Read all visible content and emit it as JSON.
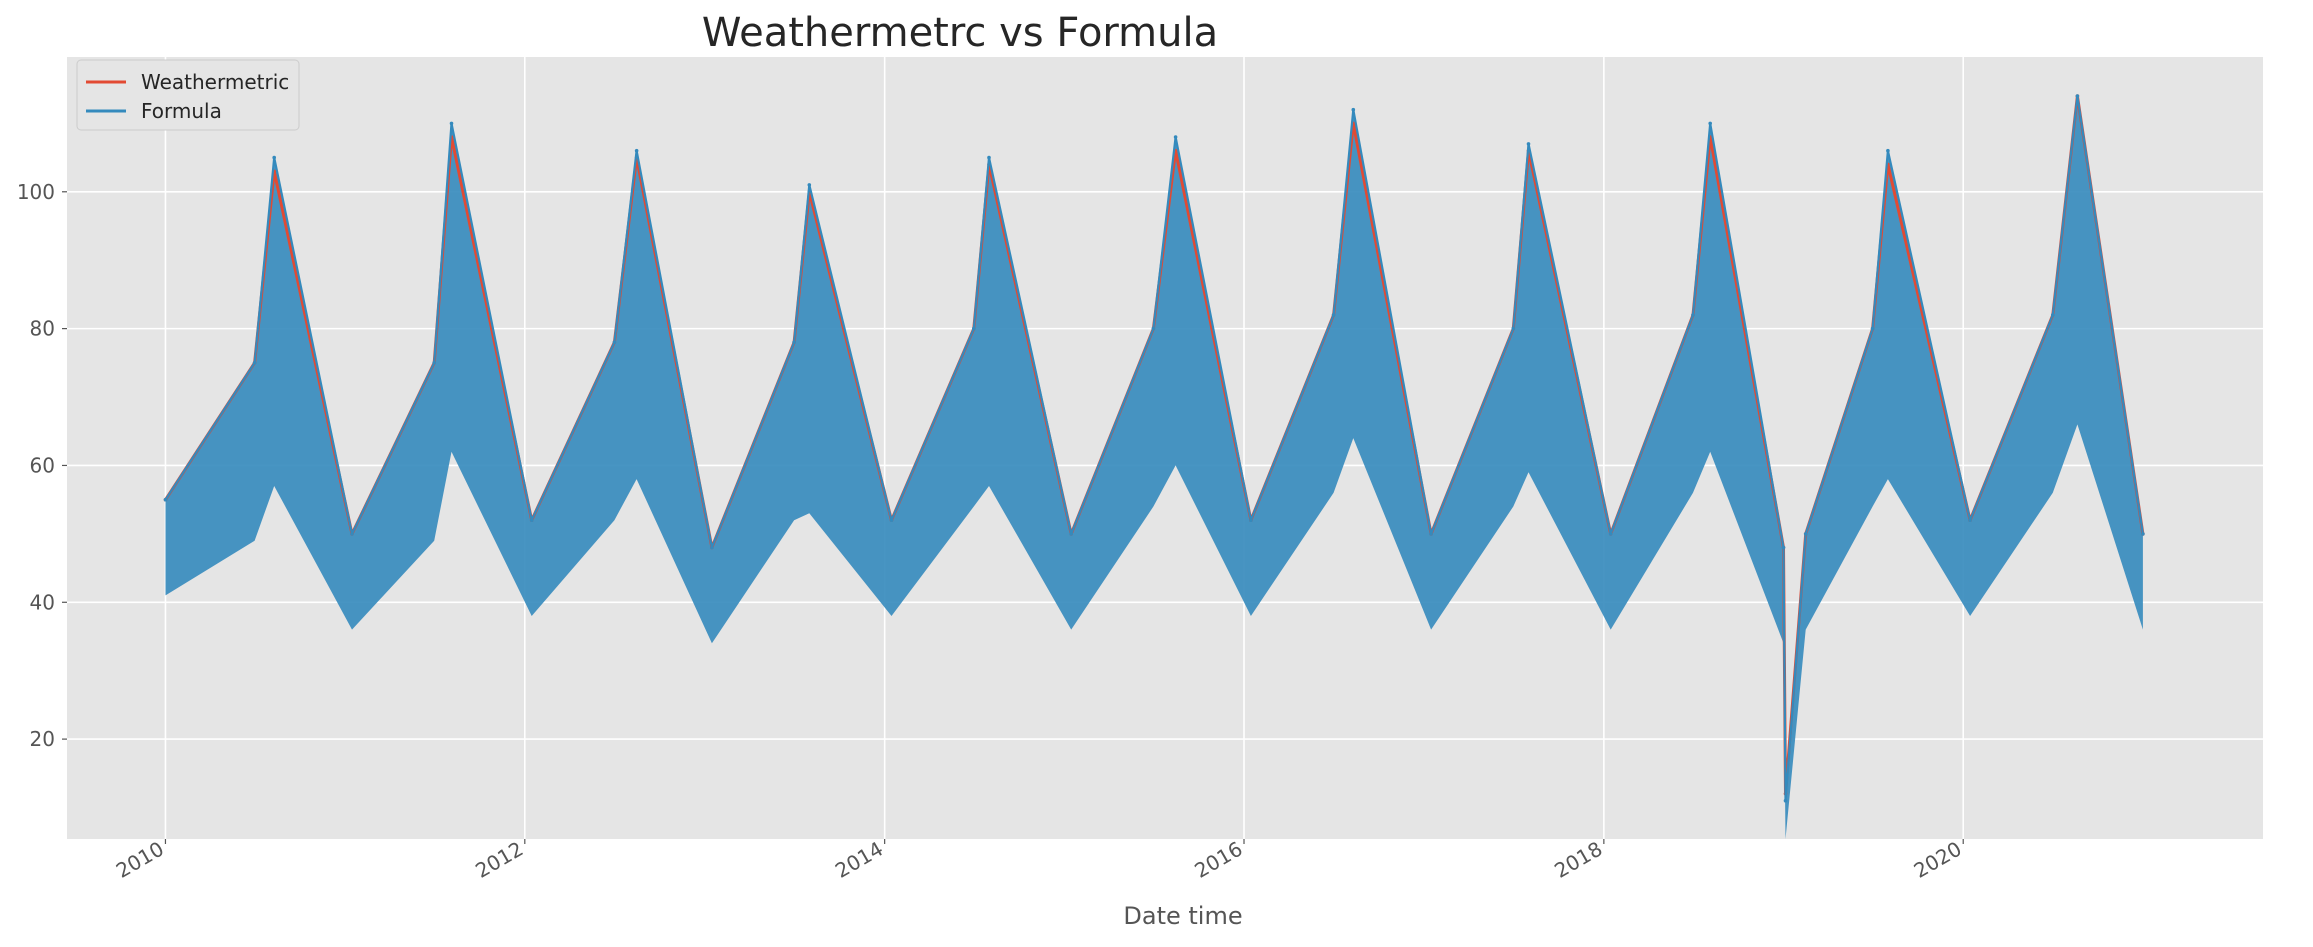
{
  "chart_data": {
    "type": "line",
    "title": "Weathermetrc vs Formula",
    "xlabel": "Date time",
    "ylabel": "",
    "xlim": [
      "2009-06-15",
      "2021-09-01"
    ],
    "ylim": [
      5.4,
      119.7
    ],
    "x_ticks": [
      "2010",
      "2012",
      "2014",
      "2016",
      "2018",
      "2020"
    ],
    "y_ticks": [
      20,
      40,
      60,
      80,
      100
    ],
    "grid": true,
    "legend_position": "upper left",
    "series": [
      {
        "name": "Weathermetric",
        "color": "#E24A33",
        "x": [
          "2010-01-01",
          "2010-07-01",
          "2010-08-10",
          "2011-01-15",
          "2011-07-01",
          "2011-08-05",
          "2012-01-15",
          "2012-07-01",
          "2012-08-15",
          "2013-01-15",
          "2013-07-01",
          "2013-08-01",
          "2014-01-15",
          "2014-07-01",
          "2014-08-01",
          "2015-01-15",
          "2015-07-01",
          "2015-08-15",
          "2016-01-15",
          "2016-07-01",
          "2016-08-10",
          "2017-01-15",
          "2017-07-01",
          "2017-08-01",
          "2018-01-15",
          "2018-07-01",
          "2018-08-05",
          "2019-01-01",
          "2019-01-05",
          "2019-02-15",
          "2019-07-01",
          "2019-08-01",
          "2020-01-15",
          "2020-07-01",
          "2020-08-20",
          "2020-12-31"
        ],
        "values": [
          55,
          75,
          103,
          50,
          75,
          108,
          52,
          78,
          105,
          48,
          78,
          100,
          52,
          80,
          104,
          50,
          80,
          106,
          52,
          82,
          110,
          50,
          80,
          106,
          50,
          82,
          108,
          48,
          12,
          50,
          80,
          104,
          52,
          82,
          114,
          50
        ]
      },
      {
        "name": "Formula",
        "color": "#348ABD",
        "x": [
          "2010-01-01",
          "2010-07-01",
          "2010-08-10",
          "2011-01-15",
          "2011-07-01",
          "2011-08-05",
          "2012-01-15",
          "2012-07-01",
          "2012-08-15",
          "2013-01-15",
          "2013-07-01",
          "2013-08-01",
          "2014-01-15",
          "2014-07-01",
          "2014-08-01",
          "2015-01-15",
          "2015-07-01",
          "2015-08-15",
          "2016-01-15",
          "2016-07-01",
          "2016-08-10",
          "2017-01-15",
          "2017-07-01",
          "2017-08-01",
          "2018-01-15",
          "2018-07-01",
          "2018-08-05",
          "2019-01-01",
          "2019-01-05",
          "2019-02-15",
          "2019-07-01",
          "2019-08-01",
          "2020-01-15",
          "2020-07-01",
          "2020-08-20",
          "2020-12-31"
        ],
        "values": [
          55,
          75,
          105,
          50,
          75,
          110,
          52,
          78,
          106,
          48,
          78,
          101,
          52,
          80,
          105,
          50,
          80,
          108,
          52,
          82,
          112,
          50,
          80,
          107,
          50,
          82,
          110,
          48,
          11,
          50,
          80,
          106,
          52,
          82,
          114,
          50
        ]
      }
    ]
  }
}
